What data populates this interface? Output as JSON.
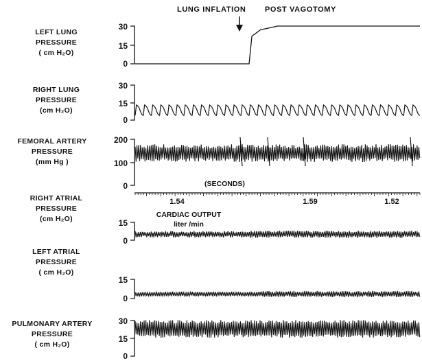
{
  "annotations": {
    "lung_inflation": "LUNG  INFLATION",
    "post_vagotomy": "POST VAGOTOMY",
    "time_axis_label": "(SECONDS)",
    "cardiac_output_line1": "CARDIAC  OUTPUT",
    "cardiac_output_line2": "liter /min"
  },
  "time_ticks": [
    "1.54",
    "1.59",
    "1.52"
  ],
  "panels": [
    {
      "label": "LEFT  LUNG\nPRESSURE\n( cm H₂O)",
      "ticks": [
        "30",
        "15",
        "0"
      ]
    },
    {
      "label": "RIGHT  LUNG\nPRESSURE\n(cm H₂O)",
      "ticks": [
        "30",
        "15",
        "0"
      ]
    },
    {
      "label": "FEMORAL  ARTERY\nPRESSURE\n(mm Hg )",
      "ticks": [
        "200",
        "100",
        "0"
      ]
    },
    {
      "label": "RIGHT  ATRIAL\nPRESSURE\n(cm H₂O)",
      "ticks": [
        "15",
        "0"
      ]
    },
    {
      "label": "LEFT  ATRIAL\nPRESSURE\n( cm  H₂O)",
      "ticks": [
        "15",
        "0"
      ]
    },
    {
      "label": "PULMONARY  ARTERY\nPRESSURE\n( cm H₂O)",
      "ticks": [
        "30",
        "15",
        "0"
      ]
    }
  ],
  "chart_data": [
    {
      "type": "line",
      "series": [
        {
          "name": "LEFT LUNG PRESSURE",
          "description_points": [
            [
              0,
              0
            ],
            [
              0.4,
              0
            ],
            [
              0.41,
              22
            ],
            [
              0.44,
              27
            ],
            [
              0.5,
              30
            ],
            [
              1,
              30
            ]
          ]
        }
      ],
      "ylim": [
        0,
        30
      ],
      "ylabel": "LEFT LUNG PRESSURE (cm H2O)"
    },
    {
      "type": "line",
      "series": [
        {
          "name": "RIGHT LUNG PRESSURE",
          "baseline": 4,
          "peak": 13,
          "cycles": 35
        }
      ],
      "ylim": [
        0,
        30
      ],
      "ylabel": "RIGHT LUNG PRESSURE (cm H2O)"
    },
    {
      "type": "area",
      "series": [
        {
          "name": "FEMORAL ARTERY PRESSURE",
          "low": 110,
          "high": 170
        }
      ],
      "ylim": [
        0,
        200
      ],
      "ylabel": "FEMORAL ARTERY PRESSURE (mm Hg)"
    },
    {
      "type": "area",
      "series": [
        {
          "name": "RIGHT ATRIAL PRESSURE",
          "low": 3,
          "high": 7
        }
      ],
      "ylim": [
        0,
        15
      ],
      "ylabel": "RIGHT ATRIAL PRESSURE (cm H2O)"
    },
    {
      "type": "area",
      "series": [
        {
          "name": "LEFT ATRIAL PRESSURE",
          "low": 2,
          "high": 5
        }
      ],
      "ylim": [
        0,
        15
      ],
      "ylabel": "LEFT ATRIAL PRESSURE (cm H2O)"
    },
    {
      "type": "area",
      "series": [
        {
          "name": "PULMONARY ARTERY PRESSURE",
          "low": 17,
          "high": 29
        }
      ],
      "ylim": [
        0,
        30
      ],
      "ylabel": "PULMONARY ARTERY PRESSURE (cm H2O)"
    }
  ]
}
